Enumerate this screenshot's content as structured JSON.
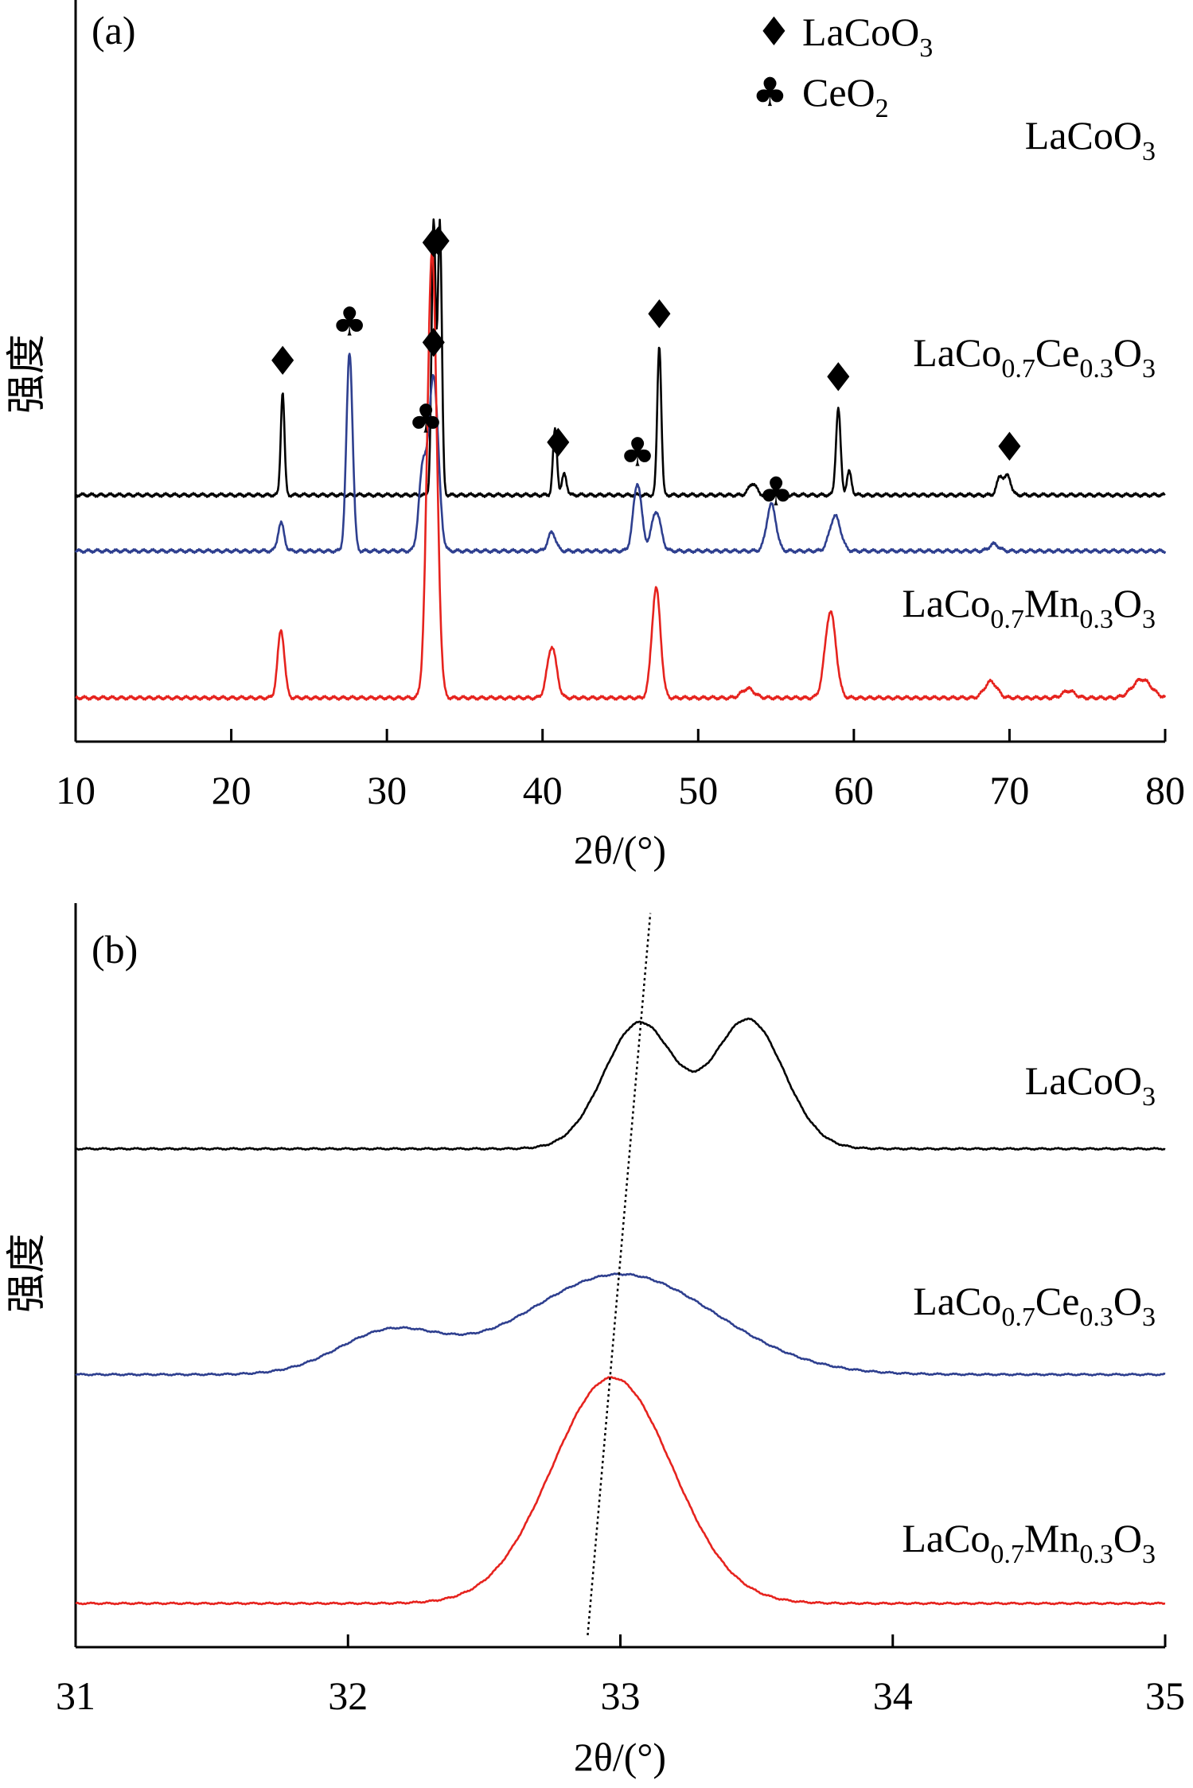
{
  "chart_data": [
    {
      "panel": "(a)",
      "type": "line",
      "xlabel": "2θ/(°)",
      "ylabel": "强度",
      "xlim": [
        10,
        80
      ],
      "xticks": [
        "10",
        "20",
        "30",
        "40",
        "50",
        "60",
        "70",
        "80"
      ],
      "legend": [
        {
          "symbol": "♦",
          "label": "LaCoO3"
        },
        {
          "symbol": "♣",
          "label": "CeO2"
        }
      ],
      "series": [
        {
          "name": "LaCoO3",
          "color": "#000000",
          "baseline": 0.87,
          "peaks": [
            {
              "x": 23.3,
              "h": 0.44,
              "w": 0.12
            },
            {
              "x": 33.0,
              "h": 1.17,
              "w": 0.13
            },
            {
              "x": 33.4,
              "h": 1.17,
              "w": 0.13
            },
            {
              "x": 40.8,
              "h": 0.28,
              "w": 0.13
            },
            {
              "x": 41.4,
              "h": 0.09,
              "w": 0.15
            },
            {
              "x": 47.5,
              "h": 0.64,
              "w": 0.13
            },
            {
              "x": 53.5,
              "h": 0.05,
              "w": 0.25
            },
            {
              "x": 59.0,
              "h": 0.37,
              "w": 0.15
            },
            {
              "x": 59.7,
              "h": 0.1,
              "w": 0.15
            },
            {
              "x": 69.4,
              "h": 0.08,
              "w": 0.2
            },
            {
              "x": 69.9,
              "h": 0.08,
              "w": 0.2
            }
          ],
          "markers": [
            {
              "x": 23.3,
              "symbol": "♦"
            },
            {
              "x": 33.3,
              "symbol": "♦"
            },
            {
              "x": 41.0,
              "symbol": "♦"
            },
            {
              "x": 47.5,
              "symbol": "♦"
            },
            {
              "x": 59.0,
              "symbol": "♦"
            },
            {
              "x": 70.0,
              "symbol": "♦"
            }
          ]
        },
        {
          "name": "LaCo0.7Ce0.3O3",
          "color": "#2e3f8f",
          "baseline": 0.63,
          "peaks": [
            {
              "x": 23.2,
              "h": 0.12,
              "w": 0.2
            },
            {
              "x": 27.6,
              "h": 0.85,
              "w": 0.2
            },
            {
              "x": 32.3,
              "h": 0.34,
              "w": 0.25
            },
            {
              "x": 33.0,
              "h": 0.75,
              "w": 0.3
            },
            {
              "x": 40.6,
              "h": 0.08,
              "w": 0.25
            },
            {
              "x": 46.1,
              "h": 0.29,
              "w": 0.27
            },
            {
              "x": 47.3,
              "h": 0.17,
              "w": 0.3
            },
            {
              "x": 54.7,
              "h": 0.2,
              "w": 0.3
            },
            {
              "x": 58.8,
              "h": 0.15,
              "w": 0.35
            },
            {
              "x": 69.0,
              "h": 0.03,
              "w": 0.3
            }
          ],
          "markers": [
            {
              "x": 27.6,
              "symbol": "♣"
            },
            {
              "x": 32.5,
              "symbol": "♣"
            },
            {
              "x": 33.0,
              "symbol": "♦"
            },
            {
              "x": 46.1,
              "symbol": "♣"
            },
            {
              "x": 55.0,
              "symbol": "♣"
            }
          ]
        },
        {
          "name": "LaCo0.7Mn0.3O3",
          "color": "#e6231e",
          "baseline": 0.0,
          "peaks": [
            {
              "x": 23.2,
              "h": 0.29,
              "w": 0.22
            },
            {
              "x": 32.9,
              "h": 1.92,
              "w": 0.3
            },
            {
              "x": 40.6,
              "h": 0.22,
              "w": 0.3
            },
            {
              "x": 47.3,
              "h": 0.47,
              "w": 0.28
            },
            {
              "x": 53.2,
              "h": 0.04,
              "w": 0.4
            },
            {
              "x": 58.5,
              "h": 0.37,
              "w": 0.35
            },
            {
              "x": 68.8,
              "h": 0.07,
              "w": 0.4
            },
            {
              "x": 73.8,
              "h": 0.03,
              "w": 0.4
            },
            {
              "x": 78.5,
              "h": 0.08,
              "w": 0.6
            }
          ],
          "markers": [
            {
              "x": 33.0,
              "symbol": "♦"
            }
          ]
        }
      ]
    },
    {
      "panel": "(b)",
      "type": "line",
      "xlabel": "2θ/(°)",
      "ylabel": "强度",
      "xlim": [
        31,
        35
      ],
      "xticks": [
        "31",
        "32",
        "33",
        "34",
        "35"
      ],
      "guide_line": {
        "x": [
          32.88,
          33.11
        ],
        "y": [
          0.0,
          2.1
        ],
        "style": "dotted"
      },
      "series": [
        {
          "name": "LaCoO3",
          "color": "#000000",
          "baseline": 1.45,
          "peaks": [
            {
              "x": 33.07,
              "h": 0.4,
              "w": 0.13
            },
            {
              "x": 33.47,
              "h": 0.41,
              "w": 0.13
            }
          ]
        },
        {
          "name": "LaCo0.7Ce0.3O3",
          "color": "#2e3f8f",
          "baseline": 0.73,
          "peaks": [
            {
              "x": 32.15,
              "h": 0.13,
              "w": 0.19
            },
            {
              "x": 33.0,
              "h": 0.32,
              "w": 0.35
            }
          ]
        },
        {
          "name": "LaCo0.7Mn0.3O3",
          "color": "#e6231e",
          "baseline": 0.0,
          "peaks": [
            {
              "x": 32.97,
              "h": 0.72,
              "w": 0.22
            }
          ]
        }
      ]
    }
  ],
  "series_labels": [
    {
      "main": "LaCoO",
      "subs": [
        "3"
      ]
    },
    {
      "main": "LaCo0.7Ce0.3O3"
    },
    {
      "main": "LaCo0.7Mn0.3O3"
    }
  ],
  "label_parts": {
    "lacoo3": {
      "a": "LaCoO",
      "s1": "3"
    },
    "lacoce": {
      "a": "LaCo",
      "s1": "0.7",
      "b": "Ce",
      "s2": "0.3",
      "c": "O",
      "s3": "3"
    },
    "lacomn": {
      "a": "LaCo",
      "s1": "0.7",
      "b": "Mn",
      "s2": "0.3",
      "c": "O",
      "s3": "3"
    },
    "legend_lacoo3": {
      "sym": "♦",
      "a": "LaCoO",
      "s1": "3"
    },
    "legend_ceo2": {
      "sym": "♣",
      "a": "CeO",
      "s1": "2"
    }
  }
}
